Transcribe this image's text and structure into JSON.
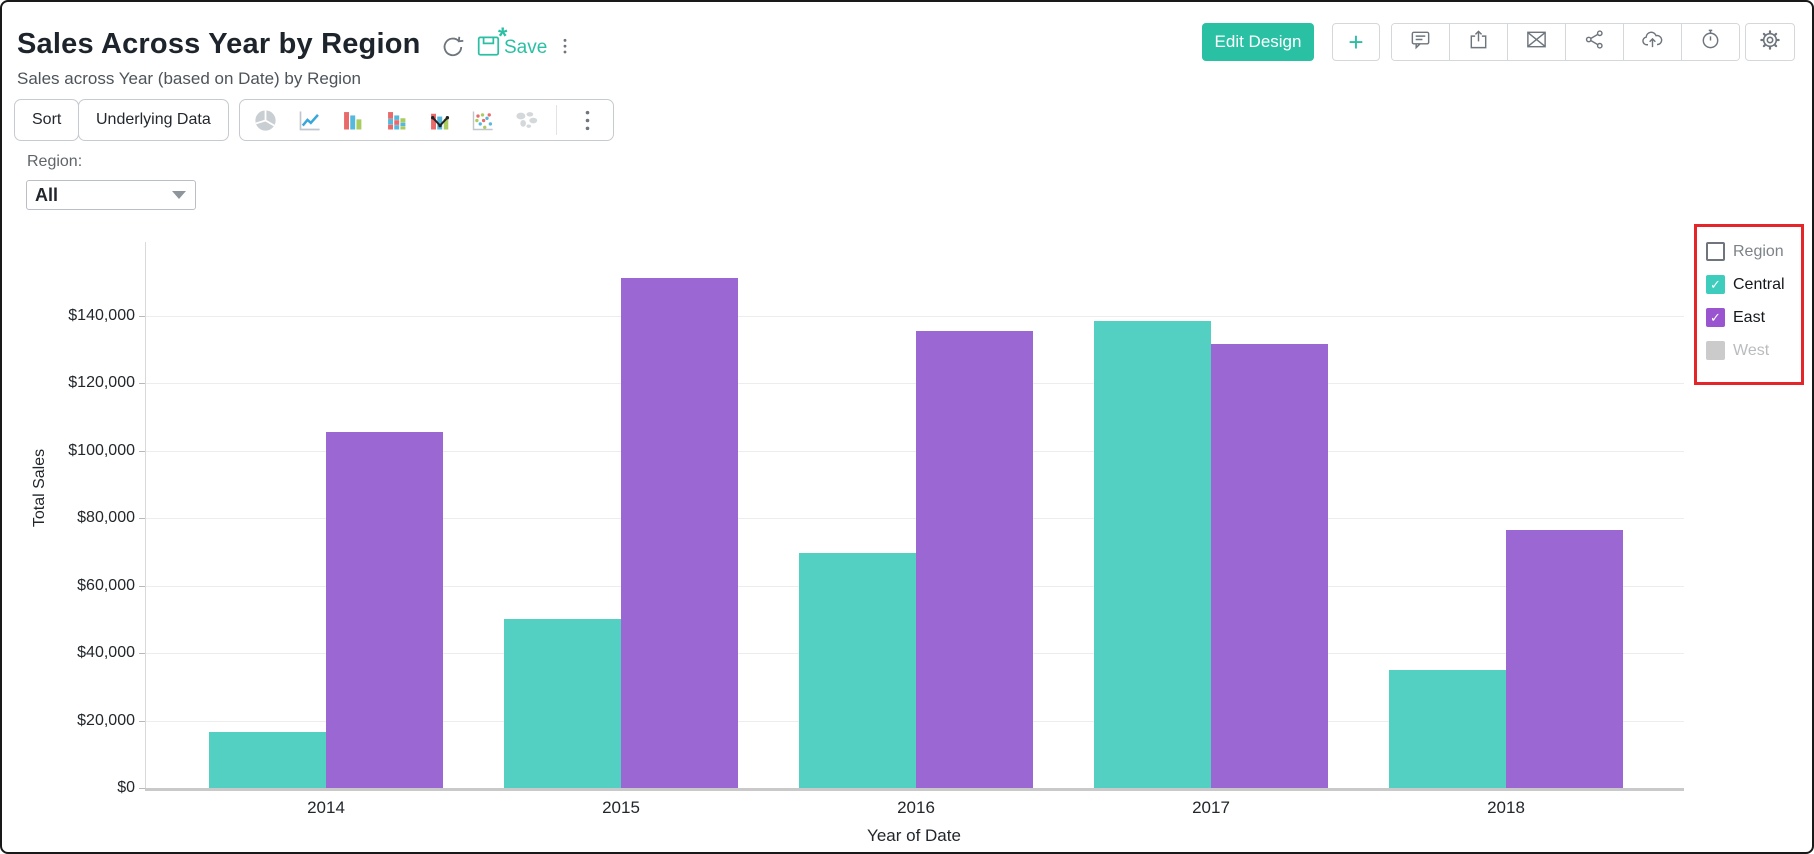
{
  "header": {
    "title": "Sales Across Year by Region",
    "subtitle": "Sales across Year (based on Date) by Region",
    "save_label": "Save",
    "save_badge": "*",
    "edit_design_label": "Edit Design",
    "add_label": "+",
    "action_icons": [
      "comment-icon",
      "export-icon",
      "email-icon",
      "share-icon",
      "cloud-upload-icon",
      "schedule-alarm-icon"
    ],
    "settings_icon": "gear-icon",
    "refresh_icon": "refresh-icon",
    "more_icon": "kebab-menu-icon"
  },
  "toolbar": {
    "sort_label": "Sort",
    "underlying_data_label": "Underlying Data",
    "chart_type_icons": [
      "pie-chart-icon",
      "line-chart-icon",
      "bar-chart-icon",
      "stacked-bar-chart-icon",
      "combo-chart-icon",
      "scatter-chart-icon",
      "map-chart-icon"
    ],
    "more_chart_types_icon": "more-chart-types-icon",
    "disabled_chart_type_icons": [
      "pie-chart-icon",
      "map-chart-icon"
    ]
  },
  "filter": {
    "label": "Region:",
    "value": "All"
  },
  "legend": {
    "title": "Region",
    "highlight_border_color": "#e4252a",
    "items": [
      {
        "label": "Central",
        "checked": true,
        "enabled": true,
        "color": "#3ecdbd",
        "text_color": "#15191d"
      },
      {
        "label": "East",
        "checked": true,
        "enabled": true,
        "color": "#9a54d0",
        "text_color": "#15191d"
      },
      {
        "label": "West",
        "checked": false,
        "enabled": false,
        "color": "#cbcbcb",
        "text_color": "#b9bcbe"
      }
    ]
  },
  "chart_data": {
    "type": "bar",
    "title": "Sales Across Year by Region",
    "categories": [
      "2014",
      "2015",
      "2016",
      "2017",
      "2018"
    ],
    "series": [
      {
        "name": "Central",
        "color": "#54d0c2",
        "values": [
          16500,
          50000,
          69500,
          138500,
          35000
        ]
      },
      {
        "name": "East",
        "color": "#9b68d3",
        "values": [
          105500,
          151000,
          135500,
          131500,
          76500
        ]
      }
    ],
    "xlabel": "Year of Date",
    "ylabel": "Total Sales",
    "ylim": [
      0,
      160000
    ],
    "ytick_step": 20000,
    "yticks": [
      "$0",
      "$20,000",
      "$40,000",
      "$60,000",
      "$80,000",
      "$100,000",
      "$120,000",
      "$140,000"
    ],
    "grid": true,
    "legend_position": "right"
  }
}
